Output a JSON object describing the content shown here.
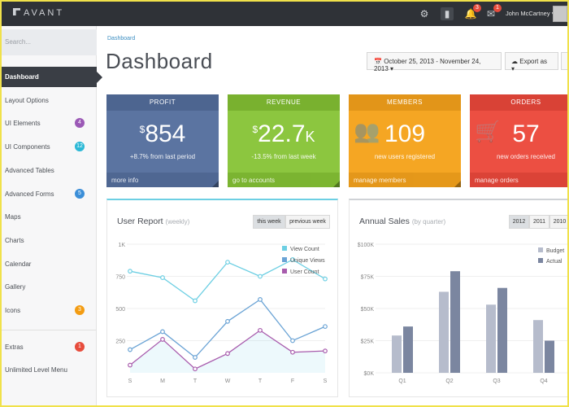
{
  "topbar": {
    "brand": "AVANT",
    "user_name": "John McCartney",
    "alerts_count": "3",
    "messages_count": "1"
  },
  "sidebar": {
    "search_placeholder": "Search...",
    "items": [
      {
        "label": "Dashboard",
        "active": true
      },
      {
        "label": "Layout Options"
      },
      {
        "label": "UI Elements",
        "badge": "4",
        "badge_color": "#9b59b6"
      },
      {
        "label": "UI Components",
        "badge": "12",
        "badge_color": "#2bb8d6"
      },
      {
        "label": "Advanced Tables"
      },
      {
        "label": "Advanced Forms",
        "badge": "5",
        "badge_color": "#3b8ed8"
      },
      {
        "label": "Maps"
      },
      {
        "label": "Charts"
      },
      {
        "label": "Calendar"
      },
      {
        "label": "Gallery"
      },
      {
        "label": "Icons",
        "badge": "3",
        "badge_color": "#f39c12"
      },
      {
        "label": "Extras",
        "badge": "1",
        "badge_color": "#e74c3c"
      },
      {
        "label": "Unlimited Level Menu"
      }
    ]
  },
  "breadcrumb": "Dashboard",
  "page_title": "Dashboard",
  "date_range": "October 25, 2013 - November 24, 2013",
  "export_label": "Export as",
  "cards": {
    "profit": {
      "title": "PROFIT",
      "currency": "$",
      "value": "854",
      "suffix": "",
      "sub": "+8.7% from last period",
      "footer": "more info",
      "color": "#5b74a1",
      "dark": "#4d6590"
    },
    "revenue": {
      "title": "REVENUE",
      "currency": "$",
      "value": "22.7",
      "suffix": "K",
      "sub": "-13.5% from last week",
      "footer": "go to accounts",
      "color": "#8cc63f",
      "dark": "#79b12f"
    },
    "members": {
      "title": "MEMBERS",
      "currency": "",
      "value": "109",
      "suffix": "",
      "sub": "new users registered",
      "footer": "manage members",
      "color": "#f5a623",
      "dark": "#e29519"
    },
    "orders": {
      "title": "ORDERS",
      "currency": "",
      "value": "57",
      "suffix": "",
      "sub": "new orders received",
      "footer": "manage orders",
      "color": "#ec4f42",
      "dark": "#d94236"
    }
  },
  "user_report": {
    "title": "User Report",
    "subtitle": "(weekly)",
    "seg_this": "this week",
    "seg_prev": "previous week"
  },
  "annual_sales": {
    "title": "Annual Sales",
    "subtitle": "(by quarter)",
    "years": [
      "2012",
      "2011",
      "2010"
    ]
  },
  "chart_data": [
    {
      "type": "line",
      "categories": [
        "S",
        "M",
        "T",
        "W",
        "T",
        "F",
        "S"
      ],
      "ylim": [
        0,
        1000
      ],
      "yticks": [
        "250",
        "500",
        "750",
        "1K"
      ],
      "series": [
        {
          "name": "View Count",
          "color": "#6dcfe3",
          "values": [
            790,
            740,
            560,
            860,
            750,
            880,
            730
          ]
        },
        {
          "name": "Unique Views",
          "color": "#6aa3d5",
          "values": [
            180,
            320,
            120,
            400,
            570,
            250,
            360
          ]
        },
        {
          "name": "User Count",
          "color": "#a85cad",
          "values": [
            60,
            260,
            30,
            150,
            330,
            160,
            170
          ]
        }
      ]
    },
    {
      "type": "bar",
      "categories": [
        "Q1",
        "Q2",
        "Q3",
        "Q4"
      ],
      "ylim": [
        0,
        100
      ],
      "yticks": [
        "$0K",
        "$25K",
        "$50K",
        "$75K",
        "$100K"
      ],
      "series": [
        {
          "name": "Budget",
          "color": "#b6bccc",
          "values": [
            29,
            63,
            53,
            41
          ]
        },
        {
          "name": "Actual",
          "color": "#7b86a0",
          "values": [
            36,
            79,
            66,
            25
          ]
        }
      ]
    }
  ]
}
